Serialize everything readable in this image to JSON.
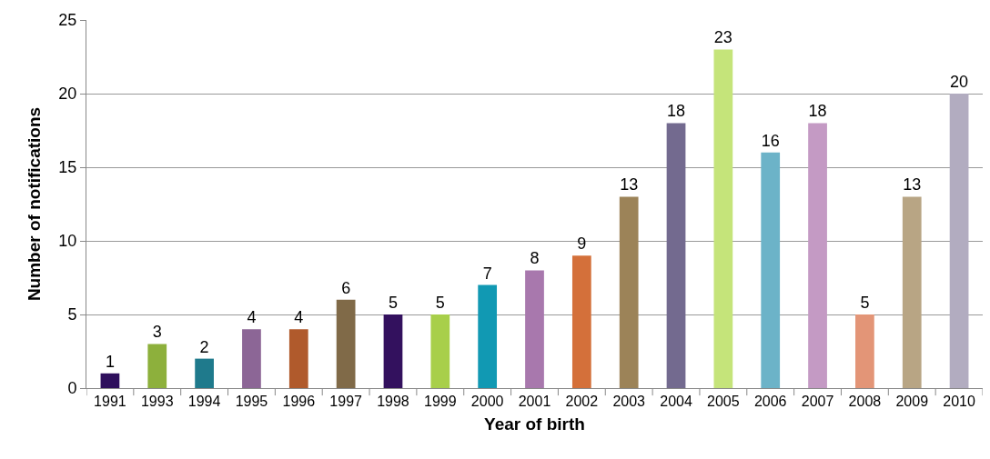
{
  "chart_data": {
    "type": "bar",
    "xlabel": "Year of birth",
    "ylabel": "Number of notifications",
    "categories": [
      "1991",
      "1993",
      "1994",
      "1995",
      "1996",
      "1997",
      "1998",
      "1999",
      "2000",
      "2001",
      "2002",
      "2003",
      "2004",
      "2005",
      "2006",
      "2007",
      "2008",
      "2009",
      "2010"
    ],
    "values": [
      1,
      3,
      2,
      4,
      4,
      6,
      5,
      5,
      7,
      8,
      9,
      13,
      18,
      23,
      16,
      18,
      5,
      13,
      20
    ],
    "colors": [
      "#2e0f5c",
      "#8db03c",
      "#1f7a8c",
      "#8c6696",
      "#b05a2c",
      "#806a48",
      "#33115e",
      "#a8cf4a",
      "#1199b3",
      "#a878ad",
      "#d4703a",
      "#9c8358",
      "#736a8f",
      "#c5e47a",
      "#6cb3c8",
      "#c49ac4",
      "#e39577",
      "#b8a584",
      "#b2acc0"
    ],
    "ylim": [
      0,
      25
    ],
    "yticks": [
      0,
      5,
      10,
      15,
      20,
      25
    ],
    "grid": "y",
    "data_labels": true
  }
}
